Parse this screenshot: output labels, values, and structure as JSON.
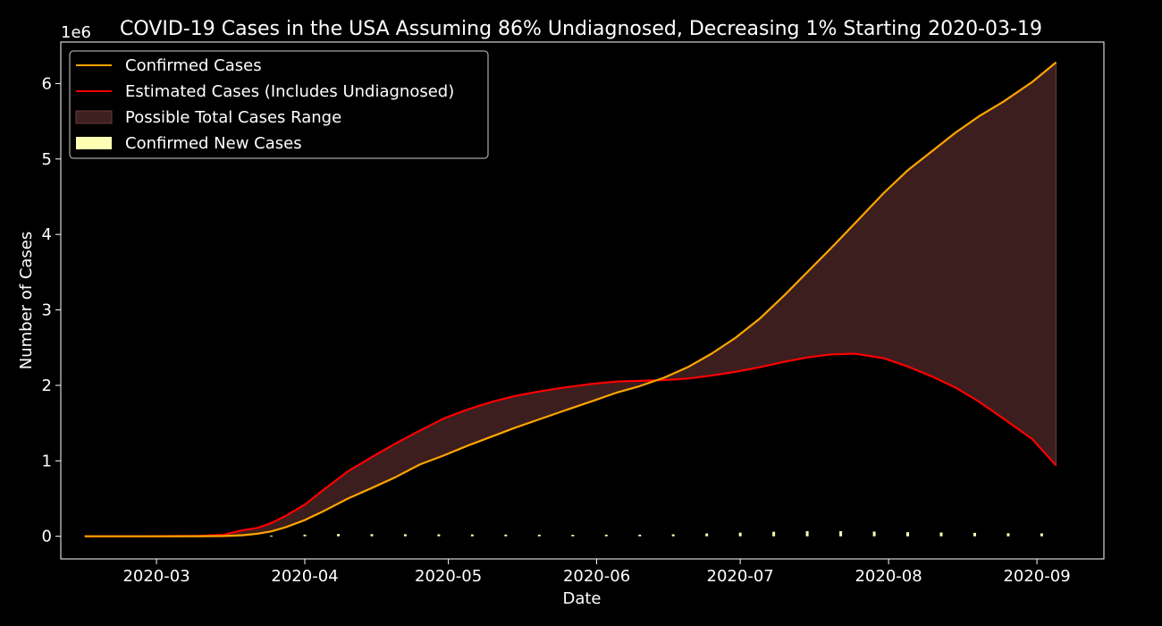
{
  "chart_data": {
    "type": "line",
    "title": "COVID-19 Cases in the USA Assuming 86% Undiagnosed, Decreasing 1% Starting 2020-03-19",
    "xlabel": "Date",
    "ylabel": "Number of Cases",
    "y_offset_label": "1e6",
    "y_ticks": [
      "0",
      "1",
      "2",
      "3",
      "4",
      "5",
      "6"
    ],
    "x_ticks": [
      "2020-03",
      "2020-04",
      "2020-05",
      "2020-06",
      "2020-07",
      "2020-08",
      "2020-09"
    ],
    "ylim": [
      -300000,
      6550000
    ],
    "xlim": [
      "2020-02-10",
      "2020-09-15"
    ],
    "grid": false,
    "legend_position": "top-left",
    "legend": [
      "Confirmed Cases",
      "Estimated Cases (Includes Undiagnosed)",
      "Possible Total Cases Range",
      "Confirmed New Cases"
    ],
    "colors": {
      "background": "#000000",
      "confirmed": "#ffa500",
      "estimated": "#ff0000",
      "range_fill": "#3f2020",
      "new_cases": "#ffffb4",
      "text": "#ffffff"
    },
    "series": [
      {
        "name": "Confirmed Cases",
        "points": [
          [
            "2020-02-15",
            0
          ],
          [
            "2020-03-01",
            80
          ],
          [
            "2020-03-10",
            1000
          ],
          [
            "2020-03-15",
            3500
          ],
          [
            "2020-03-19",
            14000
          ],
          [
            "2020-03-22",
            33000
          ],
          [
            "2020-03-25",
            65000
          ],
          [
            "2020-03-28",
            120000
          ],
          [
            "2020-04-01",
            215000
          ],
          [
            "2020-04-05",
            336000
          ],
          [
            "2020-04-10",
            500000
          ],
          [
            "2020-04-15",
            640000
          ],
          [
            "2020-04-20",
            785000
          ],
          [
            "2020-04-25",
            950000
          ],
          [
            "2020-04-30",
            1070000
          ],
          [
            "2020-05-05",
            1200000
          ],
          [
            "2020-05-10",
            1320000
          ],
          [
            "2020-05-15",
            1440000
          ],
          [
            "2020-05-20",
            1550000
          ],
          [
            "2020-05-25",
            1660000
          ],
          [
            "2020-05-31",
            1790000
          ],
          [
            "2020-06-05",
            1900000
          ],
          [
            "2020-06-10",
            1990000
          ],
          [
            "2020-06-15",
            2100000
          ],
          [
            "2020-06-20",
            2240000
          ],
          [
            "2020-06-25",
            2420000
          ],
          [
            "2020-06-30",
            2630000
          ],
          [
            "2020-07-05",
            2880000
          ],
          [
            "2020-07-10",
            3180000
          ],
          [
            "2020-07-15",
            3500000
          ],
          [
            "2020-07-20",
            3820000
          ],
          [
            "2020-07-25",
            4150000
          ],
          [
            "2020-07-31",
            4550000
          ],
          [
            "2020-08-05",
            4850000
          ],
          [
            "2020-08-10",
            5100000
          ],
          [
            "2020-08-15",
            5350000
          ],
          [
            "2020-08-20",
            5570000
          ],
          [
            "2020-08-25",
            5760000
          ],
          [
            "2020-08-31",
            6020000
          ],
          [
            "2020-09-05",
            6280000
          ]
        ]
      },
      {
        "name": "Estimated Cases (Includes Undiagnosed)",
        "points": [
          [
            "2020-02-15",
            0
          ],
          [
            "2020-03-01",
            500
          ],
          [
            "2020-03-10",
            5000
          ],
          [
            "2020-03-15",
            20000
          ],
          [
            "2020-03-19",
            80000
          ],
          [
            "2020-03-22",
            110000
          ],
          [
            "2020-03-25",
            175000
          ],
          [
            "2020-03-28",
            270000
          ],
          [
            "2020-04-01",
            420000
          ],
          [
            "2020-04-05",
            620000
          ],
          [
            "2020-04-10",
            860000
          ],
          [
            "2020-04-15",
            1050000
          ],
          [
            "2020-04-20",
            1230000
          ],
          [
            "2020-04-25",
            1400000
          ],
          [
            "2020-04-30",
            1560000
          ],
          [
            "2020-05-05",
            1680000
          ],
          [
            "2020-05-10",
            1780000
          ],
          [
            "2020-05-15",
            1860000
          ],
          [
            "2020-05-20",
            1920000
          ],
          [
            "2020-05-25",
            1970000
          ],
          [
            "2020-05-31",
            2020000
          ],
          [
            "2020-06-05",
            2050000
          ],
          [
            "2020-06-10",
            2060000
          ],
          [
            "2020-06-15",
            2070000
          ],
          [
            "2020-06-20",
            2090000
          ],
          [
            "2020-06-25",
            2130000
          ],
          [
            "2020-06-30",
            2180000
          ],
          [
            "2020-07-05",
            2240000
          ],
          [
            "2020-07-10",
            2310000
          ],
          [
            "2020-07-15",
            2370000
          ],
          [
            "2020-07-20",
            2410000
          ],
          [
            "2020-07-25",
            2420000
          ],
          [
            "2020-07-31",
            2360000
          ],
          [
            "2020-08-05",
            2250000
          ],
          [
            "2020-08-10",
            2120000
          ],
          [
            "2020-08-15",
            1970000
          ],
          [
            "2020-08-20",
            1780000
          ],
          [
            "2020-08-25",
            1560000
          ],
          [
            "2020-08-31",
            1290000
          ],
          [
            "2020-09-05",
            940000
          ]
        ]
      },
      {
        "name": "Confirmed New Cases",
        "points": [
          [
            "2020-03-25",
            10000
          ],
          [
            "2020-04-01",
            22000
          ],
          [
            "2020-04-08",
            30000
          ],
          [
            "2020-04-15",
            28000
          ],
          [
            "2020-04-22",
            27000
          ],
          [
            "2020-04-29",
            26000
          ],
          [
            "2020-05-06",
            24000
          ],
          [
            "2020-05-13",
            22000
          ],
          [
            "2020-05-20",
            21000
          ],
          [
            "2020-05-27",
            20000
          ],
          [
            "2020-06-03",
            21000
          ],
          [
            "2020-06-10",
            22000
          ],
          [
            "2020-06-17",
            26000
          ],
          [
            "2020-06-24",
            37000
          ],
          [
            "2020-07-01",
            48000
          ],
          [
            "2020-07-08",
            60000
          ],
          [
            "2020-07-15",
            68000
          ],
          [
            "2020-07-22",
            68000
          ],
          [
            "2020-07-29",
            62000
          ],
          [
            "2020-08-05",
            54000
          ],
          [
            "2020-08-12",
            50000
          ],
          [
            "2020-08-19",
            45000
          ],
          [
            "2020-08-26",
            40000
          ],
          [
            "2020-09-02",
            38000
          ]
        ]
      }
    ]
  }
}
